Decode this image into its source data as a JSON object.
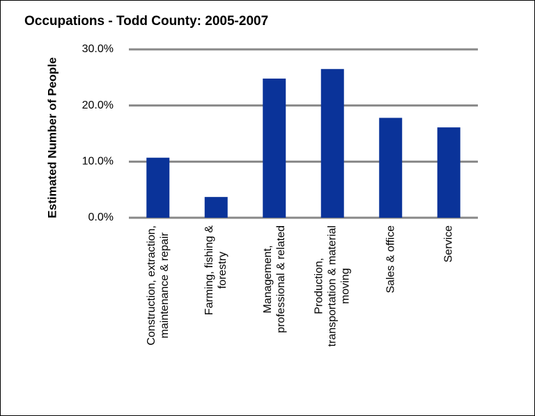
{
  "chart_data": {
    "type": "bar",
    "title": "Occupations - Todd County: 2005-2007",
    "y_label": "Estimated Number of People",
    "categories": [
      "Construction, extraction,\nmaintenance & repair",
      "Farming, fishing &\nforestry",
      "Management,\nprofessional & related",
      "Production,\ntransportation & material\nmoving",
      "Sales & office",
      "Service"
    ],
    "values": [
      10.7,
      3.7,
      24.8,
      26.5,
      17.8,
      16.1
    ],
    "color": "#0a3399",
    "ylim": [
      0,
      30
    ],
    "yticks": [
      {
        "value": 0,
        "label": "0.0%"
      },
      {
        "value": 10,
        "label": "10.0%"
      },
      {
        "value": 20,
        "label": "20.0%"
      },
      {
        "value": 30,
        "label": "30.0%"
      }
    ],
    "grid": true
  }
}
